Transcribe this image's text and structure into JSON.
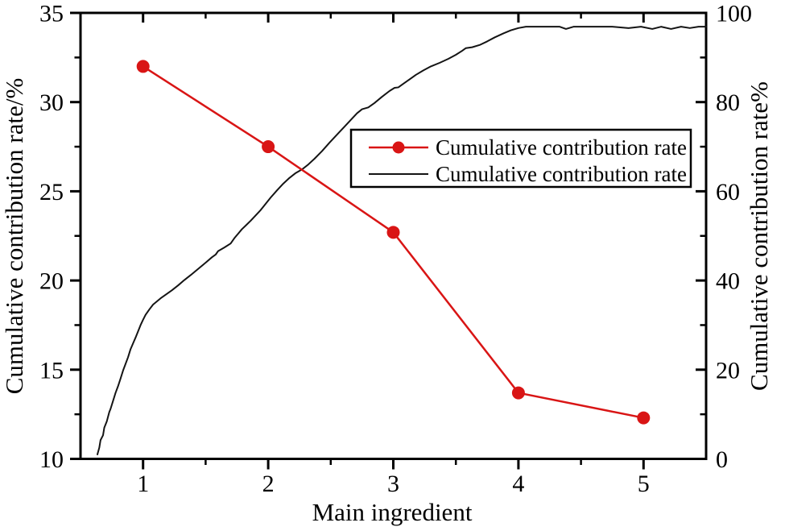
{
  "chart_data": {
    "type": "line",
    "title": "",
    "xlabel": "Main ingredient",
    "ylabel_left": "Cumulative contribution rate/%",
    "ylabel_right": "Cumulative contribution rate%",
    "xlim": [
      0.5,
      5.5
    ],
    "ylim_left": [
      10,
      35
    ],
    "ylim_right": [
      0,
      100
    ],
    "x_ticks": [
      1,
      2,
      3,
      4,
      5
    ],
    "x_minor_ticks": [
      1.5,
      2.5,
      3.5,
      4.5
    ],
    "y_left_ticks": [
      10,
      15,
      20,
      25,
      30,
      35
    ],
    "y_left_minor_ticks": [
      12.5,
      17.5,
      22.5,
      27.5,
      32.5
    ],
    "y_right_ticks": [
      0,
      20,
      40,
      60,
      80,
      100
    ],
    "y_right_minor_ticks": [
      10,
      30,
      50,
      70,
      90
    ],
    "grid": false,
    "legend_position": "inside upper-right-center",
    "colors": {
      "series1": "#d91515",
      "series2": "#141414",
      "frame": "#000000",
      "background": "#ffffff"
    },
    "series": [
      {
        "name": "Cumulative contribution rate",
        "axis": "left",
        "color": "#d91515",
        "marker": "circle",
        "x": [
          1,
          2,
          3,
          4,
          5
        ],
        "values": [
          32.0,
          27.5,
          22.7,
          13.7,
          12.3
        ]
      },
      {
        "name": "Cumulative contribution rate",
        "axis": "right",
        "color": "#141414",
        "marker": "none",
        "points": [
          [
            0.635,
            1.0
          ],
          [
            0.65,
            2.5
          ],
          [
            0.66,
            4.2
          ],
          [
            0.68,
            5.3
          ],
          [
            0.69,
            7.0
          ],
          [
            0.71,
            8.4
          ],
          [
            0.73,
            10.5
          ],
          [
            0.74,
            11.2
          ],
          [
            0.76,
            13.0
          ],
          [
            0.78,
            14.8
          ],
          [
            0.8,
            16.3
          ],
          [
            0.82,
            18.0
          ],
          [
            0.84,
            19.8
          ],
          [
            0.86,
            21.3
          ],
          [
            0.88,
            22.8
          ],
          [
            0.9,
            24.6
          ],
          [
            0.92,
            25.9
          ],
          [
            0.94,
            27.2
          ],
          [
            0.96,
            28.6
          ],
          [
            0.98,
            30.0
          ],
          [
            1.0,
            31.2
          ],
          [
            1.02,
            32.3
          ],
          [
            1.05,
            33.5
          ],
          [
            1.08,
            34.6
          ],
          [
            1.11,
            35.3
          ],
          [
            1.14,
            36.0
          ],
          [
            1.18,
            36.8
          ],
          [
            1.23,
            37.8
          ],
          [
            1.28,
            38.9
          ],
          [
            1.33,
            40.1
          ],
          [
            1.38,
            41.2
          ],
          [
            1.44,
            42.6
          ],
          [
            1.5,
            44.0
          ],
          [
            1.55,
            45.2
          ],
          [
            1.58,
            45.8
          ],
          [
            1.6,
            46.6
          ],
          [
            1.65,
            47.4
          ],
          [
            1.7,
            48.3
          ],
          [
            1.73,
            49.5
          ],
          [
            1.76,
            50.5
          ],
          [
            1.79,
            51.5
          ],
          [
            1.82,
            52.3
          ],
          [
            1.86,
            53.4
          ],
          [
            1.9,
            54.6
          ],
          [
            1.94,
            55.8
          ],
          [
            1.98,
            57.2
          ],
          [
            2.02,
            58.6
          ],
          [
            2.07,
            60.2
          ],
          [
            2.12,
            61.7
          ],
          [
            2.17,
            63.0
          ],
          [
            2.22,
            64.1
          ],
          [
            2.27,
            64.9
          ],
          [
            2.32,
            66.0
          ],
          [
            2.37,
            67.3
          ],
          [
            2.43,
            69.0
          ],
          [
            2.49,
            70.9
          ],
          [
            2.55,
            72.7
          ],
          [
            2.61,
            74.5
          ],
          [
            2.67,
            76.3
          ],
          [
            2.71,
            77.5
          ],
          [
            2.75,
            78.4
          ],
          [
            2.8,
            78.8
          ],
          [
            2.85,
            79.8
          ],
          [
            2.91,
            81.2
          ],
          [
            2.97,
            82.5
          ],
          [
            3.01,
            83.2
          ],
          [
            3.04,
            83.3
          ],
          [
            3.07,
            83.9
          ],
          [
            3.12,
            84.9
          ],
          [
            3.18,
            86.1
          ],
          [
            3.24,
            87.1
          ],
          [
            3.3,
            88.0
          ],
          [
            3.37,
            88.8
          ],
          [
            3.44,
            89.7
          ],
          [
            3.5,
            90.6
          ],
          [
            3.55,
            91.5
          ],
          [
            3.58,
            92.1
          ],
          [
            3.63,
            92.3
          ],
          [
            3.69,
            92.8
          ],
          [
            3.75,
            93.6
          ],
          [
            3.81,
            94.5
          ],
          [
            3.88,
            95.4
          ],
          [
            3.94,
            96.1
          ],
          [
            4.0,
            96.6
          ],
          [
            4.06,
            96.9
          ],
          [
            4.15,
            96.9
          ],
          [
            4.25,
            96.9
          ],
          [
            4.33,
            96.9
          ],
          [
            4.38,
            96.4
          ],
          [
            4.44,
            96.9
          ],
          [
            4.6,
            96.9
          ],
          [
            4.75,
            96.9
          ],
          [
            4.88,
            96.6
          ],
          [
            4.98,
            96.9
          ],
          [
            5.07,
            96.4
          ],
          [
            5.14,
            96.9
          ],
          [
            5.22,
            96.4
          ],
          [
            5.3,
            96.9
          ],
          [
            5.37,
            96.6
          ],
          [
            5.44,
            96.9
          ],
          [
            5.5,
            96.9
          ]
        ]
      }
    ],
    "legend_entries": [
      "Cumulative contribution rate",
      "Cumulative contribution rate"
    ]
  }
}
